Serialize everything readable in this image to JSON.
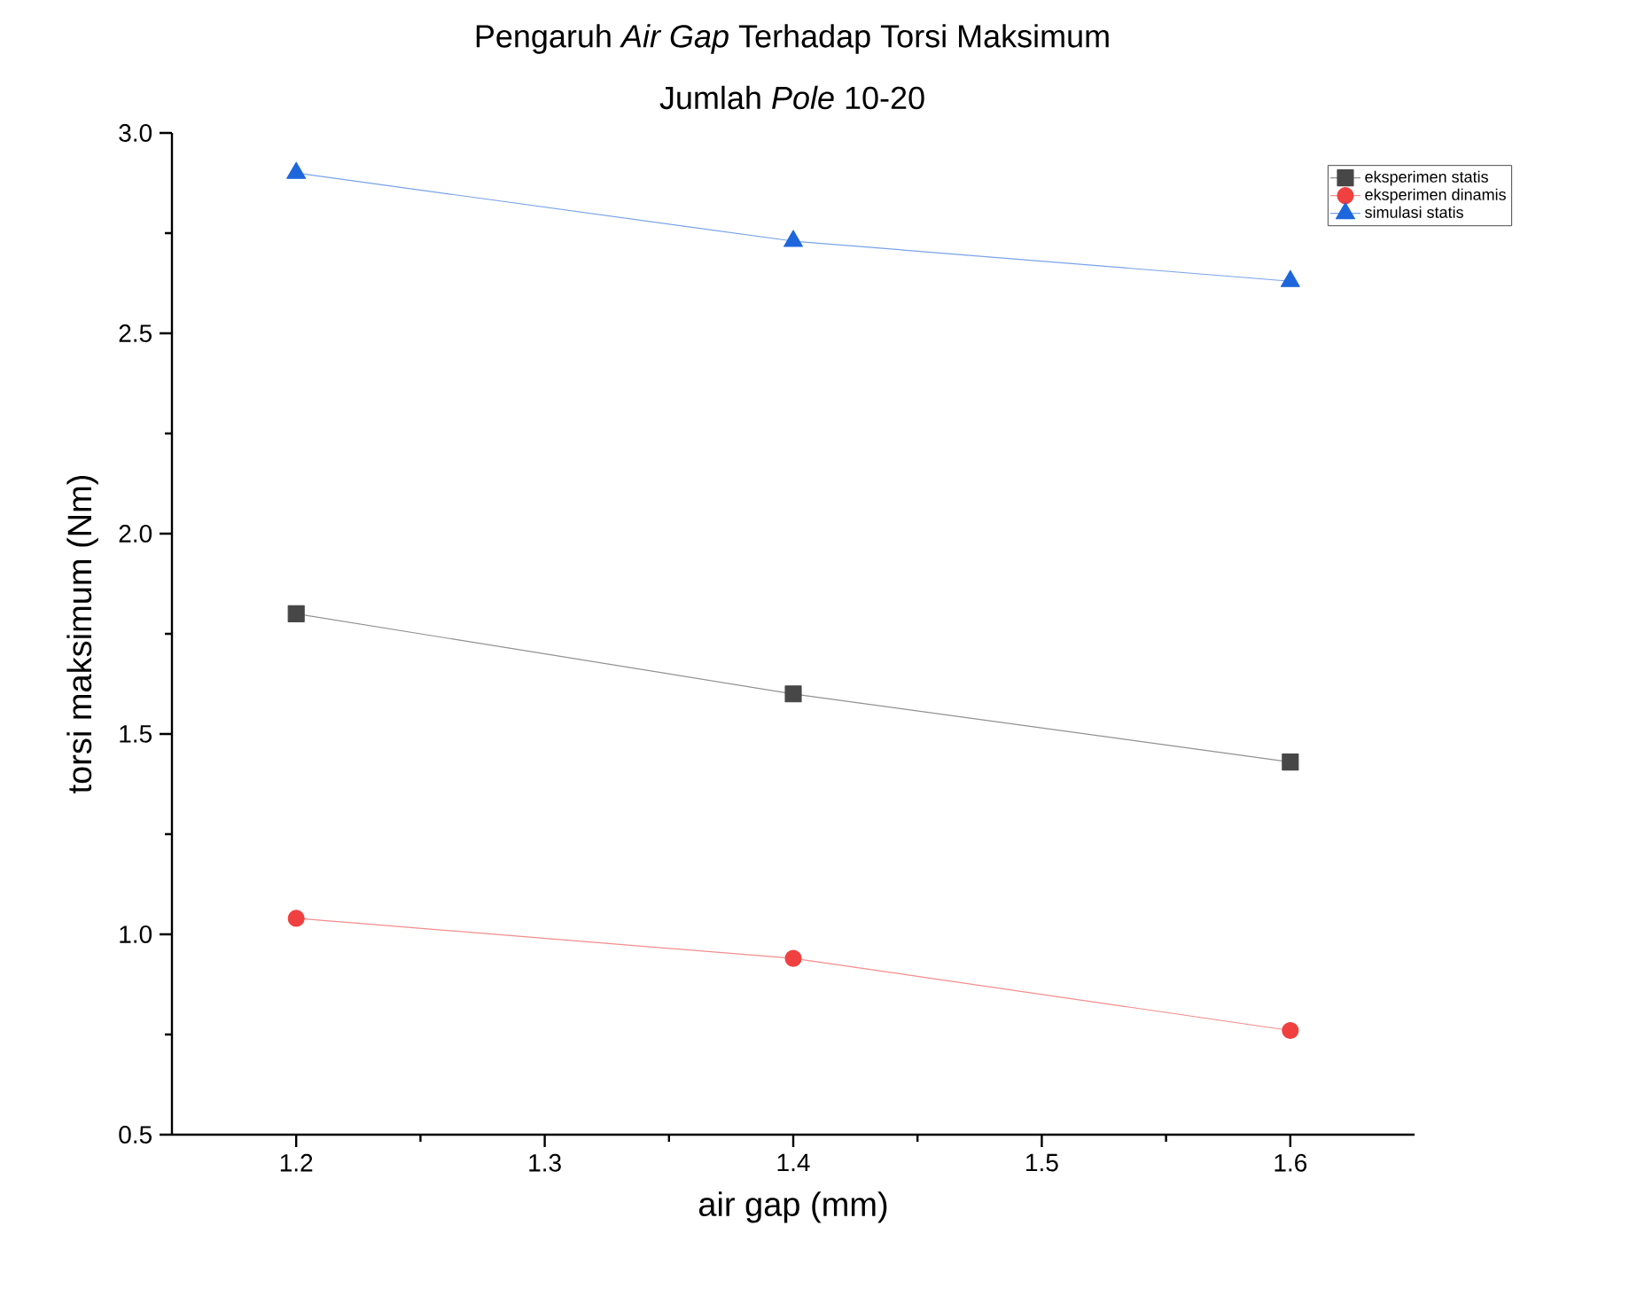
{
  "chart_data": {
    "type": "line",
    "title": "Pengaruh *Air Gap* Terhadap Torsi Maksimum",
    "subtitle": "Jumlah *Pole* 10-20",
    "xlabel": "air gap (mm)",
    "ylabel": "torsi maksimum (Nm)",
    "x": [
      1.2,
      1.4,
      1.6
    ],
    "series": [
      {
        "name": "eksperimen statis",
        "color": "#474747",
        "marker": "square",
        "values": [
          1.8,
          1.6,
          1.43
        ]
      },
      {
        "name": "eksperimen dinamis",
        "color": "#f04040",
        "marker": "circle",
        "values": [
          1.04,
          0.94,
          0.76
        ]
      },
      {
        "name": "simulasi statis",
        "color": "#1e66dc",
        "marker": "triangle",
        "values": [
          2.9,
          2.73,
          2.63
        ]
      }
    ],
    "xlim": [
      1.15,
      1.65
    ],
    "ylim": [
      0.5,
      3.0
    ],
    "xticks": [
      1.2,
      1.3,
      1.4,
      1.5,
      1.6
    ],
    "yticks": [
      0.5,
      {
        "value": 1,
        "label": "1.0"
      },
      1.5,
      {
        "value": 2,
        "label": "2.0"
      },
      2.5,
      {
        "value": 3,
        "label": "3.0"
      }
    ],
    "grid": false,
    "legend": "top right",
    "line_style": "solid"
  }
}
